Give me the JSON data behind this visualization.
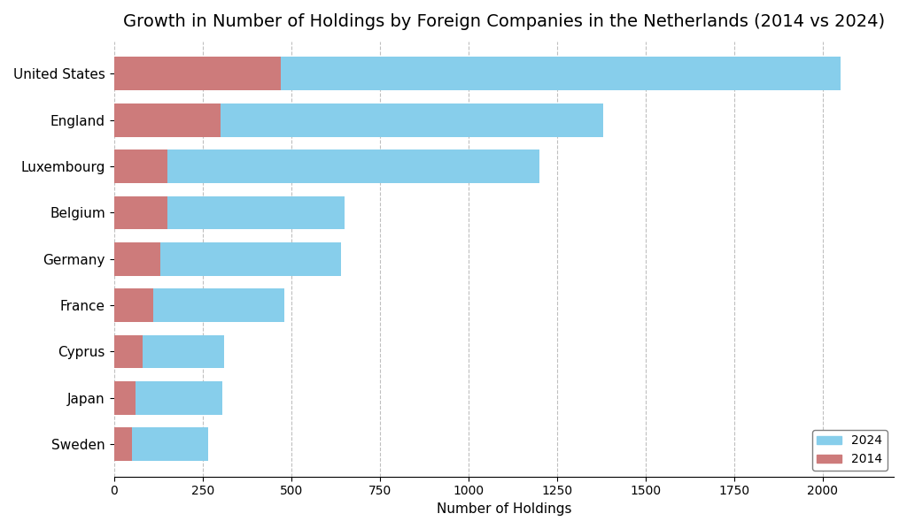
{
  "title": "Growth in Number of Holdings by Foreign Companies in the Netherlands (2014 vs 2024)",
  "xlabel": "Number of Holdings",
  "countries": [
    "United States",
    "England",
    "Luxembourg",
    "Belgium",
    "Germany",
    "France",
    "Cyprus",
    "Japan",
    "Sweden"
  ],
  "values_2024": [
    2050,
    1380,
    1200,
    650,
    640,
    480,
    310,
    305,
    265
  ],
  "values_2014": [
    470,
    300,
    150,
    150,
    130,
    110,
    80,
    60,
    50
  ],
  "color_2024": "#87CEEB",
  "color_2014": "#CD7B7B",
  "background_color": "#FFFFFF",
  "title_fontsize": 14,
  "label_fontsize": 11,
  "tick_fontsize": 10,
  "bar_height": 0.72,
  "xlim": [
    0,
    2200
  ],
  "xticks": [
    0,
    250,
    500,
    750,
    1000,
    1250,
    1500,
    1750,
    2000
  ],
  "legend_labels": [
    "2024",
    "2014"
  ],
  "legend_loc": "lower right"
}
